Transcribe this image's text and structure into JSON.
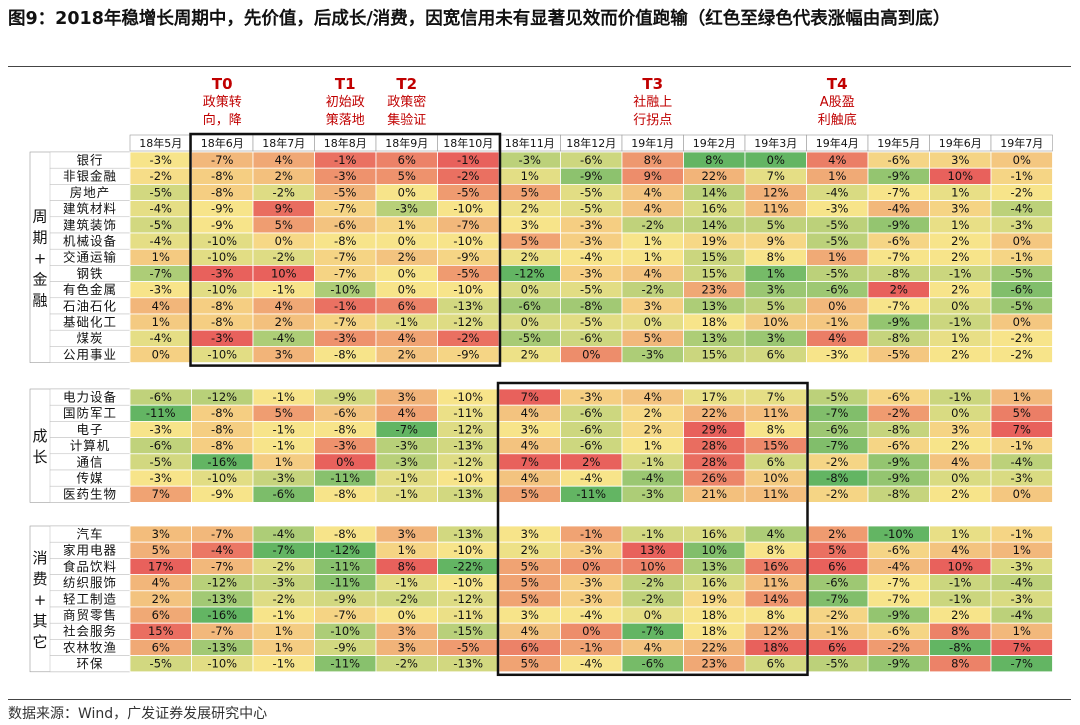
{
  "title": "图9：2018年稳增长周期中，先价值，后成长/消费，因宽信用未有显著见效而价值跑输（红色至绿色代表涨幅由高到底）",
  "source": "数据来源：Wind，广发证券发展研究中心",
  "annotations": [
    {
      "label": "T0",
      "text": "政策转\n向，降",
      "col": 1
    },
    {
      "label": "T1",
      "text": "初始政\n策落地",
      "col": 3
    },
    {
      "label": "T2",
      "text": "政策密\n集验证",
      "col": 4
    },
    {
      "label": "T3",
      "text": "社融上\n行拐点",
      "col": 8
    },
    {
      "label": "T4",
      "text": "A股盈\n利触底",
      "col": 11
    }
  ],
  "colors": {
    "high": "#e8615c",
    "mid": "#f7e48a",
    "low": "#63b563",
    "border": "#111111",
    "annotation": "#c00000"
  },
  "chart_data": {
    "type": "heatmap",
    "columns": [
      "18年5月",
      "18年6月",
      "18年7月",
      "18年8月",
      "18年9月",
      "18年10月",
      "18年11月",
      "18年12月",
      "19年1月",
      "19年2月",
      "19年3月",
      "19年4月",
      "19年5月",
      "19年6月",
      "19年7月"
    ],
    "groups": [
      {
        "name": "周期+金融",
        "rows": [
          {
            "name": "银行",
            "values": [
              "-3%",
              "-7%",
              "4%",
              "-1%",
              "6%",
              "-1%",
              "-3%",
              "-6%",
              "8%",
              "8%",
              "0%",
              "4%",
              "-6%",
              "3%",
              "0%"
            ]
          },
          {
            "name": "非银金融",
            "values": [
              "-2%",
              "-8%",
              "2%",
              "-3%",
              "5%",
              "-2%",
              "1%",
              "-9%",
              "9%",
              "22%",
              "7%",
              "1%",
              "-9%",
              "10%",
              "-1%"
            ]
          },
          {
            "name": "房地产",
            "values": [
              "-5%",
              "-8%",
              "-2%",
              "-5%",
              "0%",
              "-5%",
              "5%",
              "-5%",
              "4%",
              "14%",
              "12%",
              "-4%",
              "-7%",
              "1%",
              "-2%"
            ]
          },
          {
            "name": "建筑材料",
            "values": [
              "-4%",
              "-9%",
              "9%",
              "-7%",
              "-3%",
              "-10%",
              "2%",
              "-5%",
              "4%",
              "16%",
              "11%",
              "-3%",
              "-4%",
              "3%",
              "-4%"
            ]
          },
          {
            "name": "建筑装饰",
            "values": [
              "-5%",
              "-9%",
              "5%",
              "-6%",
              "1%",
              "-7%",
              "3%",
              "-3%",
              "-2%",
              "14%",
              "5%",
              "-5%",
              "-9%",
              "1%",
              "-3%"
            ]
          },
          {
            "name": "机械设备",
            "values": [
              "-4%",
              "-10%",
              "0%",
              "-8%",
              "0%",
              "-10%",
              "5%",
              "-3%",
              "1%",
              "19%",
              "9%",
              "-5%",
              "-6%",
              "2%",
              "0%"
            ]
          },
          {
            "name": "交通运输",
            "values": [
              "1%",
              "-10%",
              "-2%",
              "-7%",
              "2%",
              "-9%",
              "2%",
              "-4%",
              "1%",
              "15%",
              "8%",
              "1%",
              "-7%",
              "2%",
              "-1%"
            ]
          },
          {
            "name": "钢铁",
            "values": [
              "-7%",
              "-3%",
              "10%",
              "-7%",
              "0%",
              "-5%",
              "-12%",
              "-3%",
              "4%",
              "15%",
              "1%",
              "-5%",
              "-8%",
              "-1%",
              "-5%"
            ]
          },
          {
            "name": "有色金属",
            "values": [
              "-3%",
              "-10%",
              "-1%",
              "-10%",
              "0%",
              "-10%",
              "0%",
              "-5%",
              "-2%",
              "23%",
              "3%",
              "-6%",
              "2%",
              "2%",
              "-6%"
            ]
          },
          {
            "name": "石油石化",
            "values": [
              "4%",
              "-8%",
              "4%",
              "-1%",
              "6%",
              "-13%",
              "-6%",
              "-8%",
              "3%",
              "13%",
              "5%",
              "0%",
              "-7%",
              "0%",
              "-5%"
            ]
          },
          {
            "name": "基础化工",
            "values": [
              "1%",
              "-8%",
              "2%",
              "-7%",
              "-1%",
              "-12%",
              "0%",
              "-5%",
              "0%",
              "18%",
              "10%",
              "-1%",
              "-9%",
              "-1%",
              "0%"
            ]
          },
          {
            "name": "煤炭",
            "values": [
              "-4%",
              "-3%",
              "-4%",
              "-3%",
              "4%",
              "-2%",
              "-5%",
              "-6%",
              "5%",
              "13%",
              "3%",
              "4%",
              "-8%",
              "1%",
              "-2%"
            ]
          },
          {
            "name": "公用事业",
            "values": [
              "0%",
              "-10%",
              "3%",
              "-8%",
              "2%",
              "-9%",
              "2%",
              "0%",
              "-3%",
              "15%",
              "6%",
              "-3%",
              "-5%",
              "2%",
              "-2%"
            ]
          }
        ]
      },
      {
        "name": "成长",
        "rows": [
          {
            "name": "电力设备",
            "values": [
              "-6%",
              "-12%",
              "-1%",
              "-9%",
              "3%",
              "-10%",
              "7%",
              "-3%",
              "4%",
              "17%",
              "7%",
              "-5%",
              "-6%",
              "-1%",
              "1%"
            ]
          },
          {
            "name": "国防军工",
            "values": [
              "-11%",
              "-8%",
              "5%",
              "-6%",
              "4%",
              "-11%",
              "4%",
              "-6%",
              "2%",
              "22%",
              "11%",
              "-7%",
              "-2%",
              "0%",
              "5%"
            ]
          },
          {
            "name": "电子",
            "values": [
              "-3%",
              "-8%",
              "-1%",
              "-8%",
              "-7%",
              "-12%",
              "3%",
              "-6%",
              "2%",
              "29%",
              "8%",
              "-6%",
              "-8%",
              "3%",
              "7%"
            ]
          },
          {
            "name": "计算机",
            "values": [
              "-6%",
              "-8%",
              "-1%",
              "-3%",
              "-3%",
              "-13%",
              "4%",
              "-6%",
              "1%",
              "28%",
              "15%",
              "-7%",
              "-6%",
              "2%",
              "-1%"
            ]
          },
          {
            "name": "通信",
            "values": [
              "-5%",
              "-16%",
              "1%",
              "0%",
              "-3%",
              "-12%",
              "7%",
              "2%",
              "-1%",
              "28%",
              "6%",
              "-2%",
              "-9%",
              "4%",
              "-4%"
            ]
          },
          {
            "name": "传媒",
            "values": [
              "-3%",
              "-10%",
              "-3%",
              "-11%",
              "-1%",
              "-10%",
              "4%",
              "-4%",
              "-4%",
              "26%",
              "10%",
              "-8%",
              "-9%",
              "0%",
              "-3%"
            ]
          },
          {
            "name": "医药生物",
            "values": [
              "7%",
              "-9%",
              "-6%",
              "-8%",
              "-1%",
              "-13%",
              "5%",
              "-11%",
              "-3%",
              "21%",
              "11%",
              "-2%",
              "-8%",
              "2%",
              "0%"
            ]
          }
        ]
      },
      {
        "name": "消费+其它",
        "rows": [
          {
            "name": "汽车",
            "values": [
              "3%",
              "-7%",
              "-4%",
              "-8%",
              "3%",
              "-13%",
              "3%",
              "-1%",
              "-1%",
              "16%",
              "4%",
              "2%",
              "-10%",
              "1%",
              "-1%"
            ]
          },
          {
            "name": "家用电器",
            "values": [
              "5%",
              "-4%",
              "-7%",
              "-12%",
              "1%",
              "-10%",
              "2%",
              "-3%",
              "13%",
              "10%",
              "8%",
              "5%",
              "-6%",
              "4%",
              "1%"
            ]
          },
          {
            "name": "食品饮料",
            "values": [
              "17%",
              "-7%",
              "-2%",
              "-11%",
              "8%",
              "-22%",
              "5%",
              "0%",
              "10%",
              "13%",
              "16%",
              "6%",
              "-4%",
              "10%",
              "-3%"
            ]
          },
          {
            "name": "纺织服饰",
            "values": [
              "4%",
              "-12%",
              "-3%",
              "-11%",
              "-1%",
              "-10%",
              "5%",
              "-3%",
              "-2%",
              "16%",
              "11%",
              "-6%",
              "-7%",
              "-1%",
              "-4%"
            ]
          },
          {
            "name": "轻工制造",
            "values": [
              "2%",
              "-13%",
              "-2%",
              "-9%",
              "-2%",
              "-12%",
              "5%",
              "-3%",
              "-2%",
              "19%",
              "14%",
              "-7%",
              "-7%",
              "-1%",
              "-3%"
            ]
          },
          {
            "name": "商贸零售",
            "values": [
              "6%",
              "-16%",
              "-1%",
              "-7%",
              "0%",
              "-11%",
              "3%",
              "-4%",
              "0%",
              "18%",
              "8%",
              "-2%",
              "-9%",
              "2%",
              "-4%"
            ]
          },
          {
            "name": "社会服务",
            "values": [
              "15%",
              "-7%",
              "1%",
              "-10%",
              "3%",
              "-15%",
              "4%",
              "0%",
              "-7%",
              "18%",
              "12%",
              "-1%",
              "-6%",
              "8%",
              "1%"
            ]
          },
          {
            "name": "农林牧渔",
            "values": [
              "6%",
              "-13%",
              "1%",
              "-9%",
              "3%",
              "-5%",
              "6%",
              "-1%",
              "4%",
              "22%",
              "18%",
              "6%",
              "-2%",
              "-8%",
              "7%"
            ]
          },
          {
            "name": "环保",
            "values": [
              "-5%",
              "-10%",
              "-1%",
              "-11%",
              "-2%",
              "-13%",
              "5%",
              "-4%",
              "-6%",
              "23%",
              "6%",
              "-5%",
              "-9%",
              "8%",
              "-7%"
            ]
          }
        ]
      }
    ],
    "highlight_boxes": [
      {
        "group": 0,
        "col_start": 1,
        "col_end": 5
      },
      {
        "groups": [
          1,
          2
        ],
        "col_start": 6,
        "col_end": 10
      }
    ]
  }
}
